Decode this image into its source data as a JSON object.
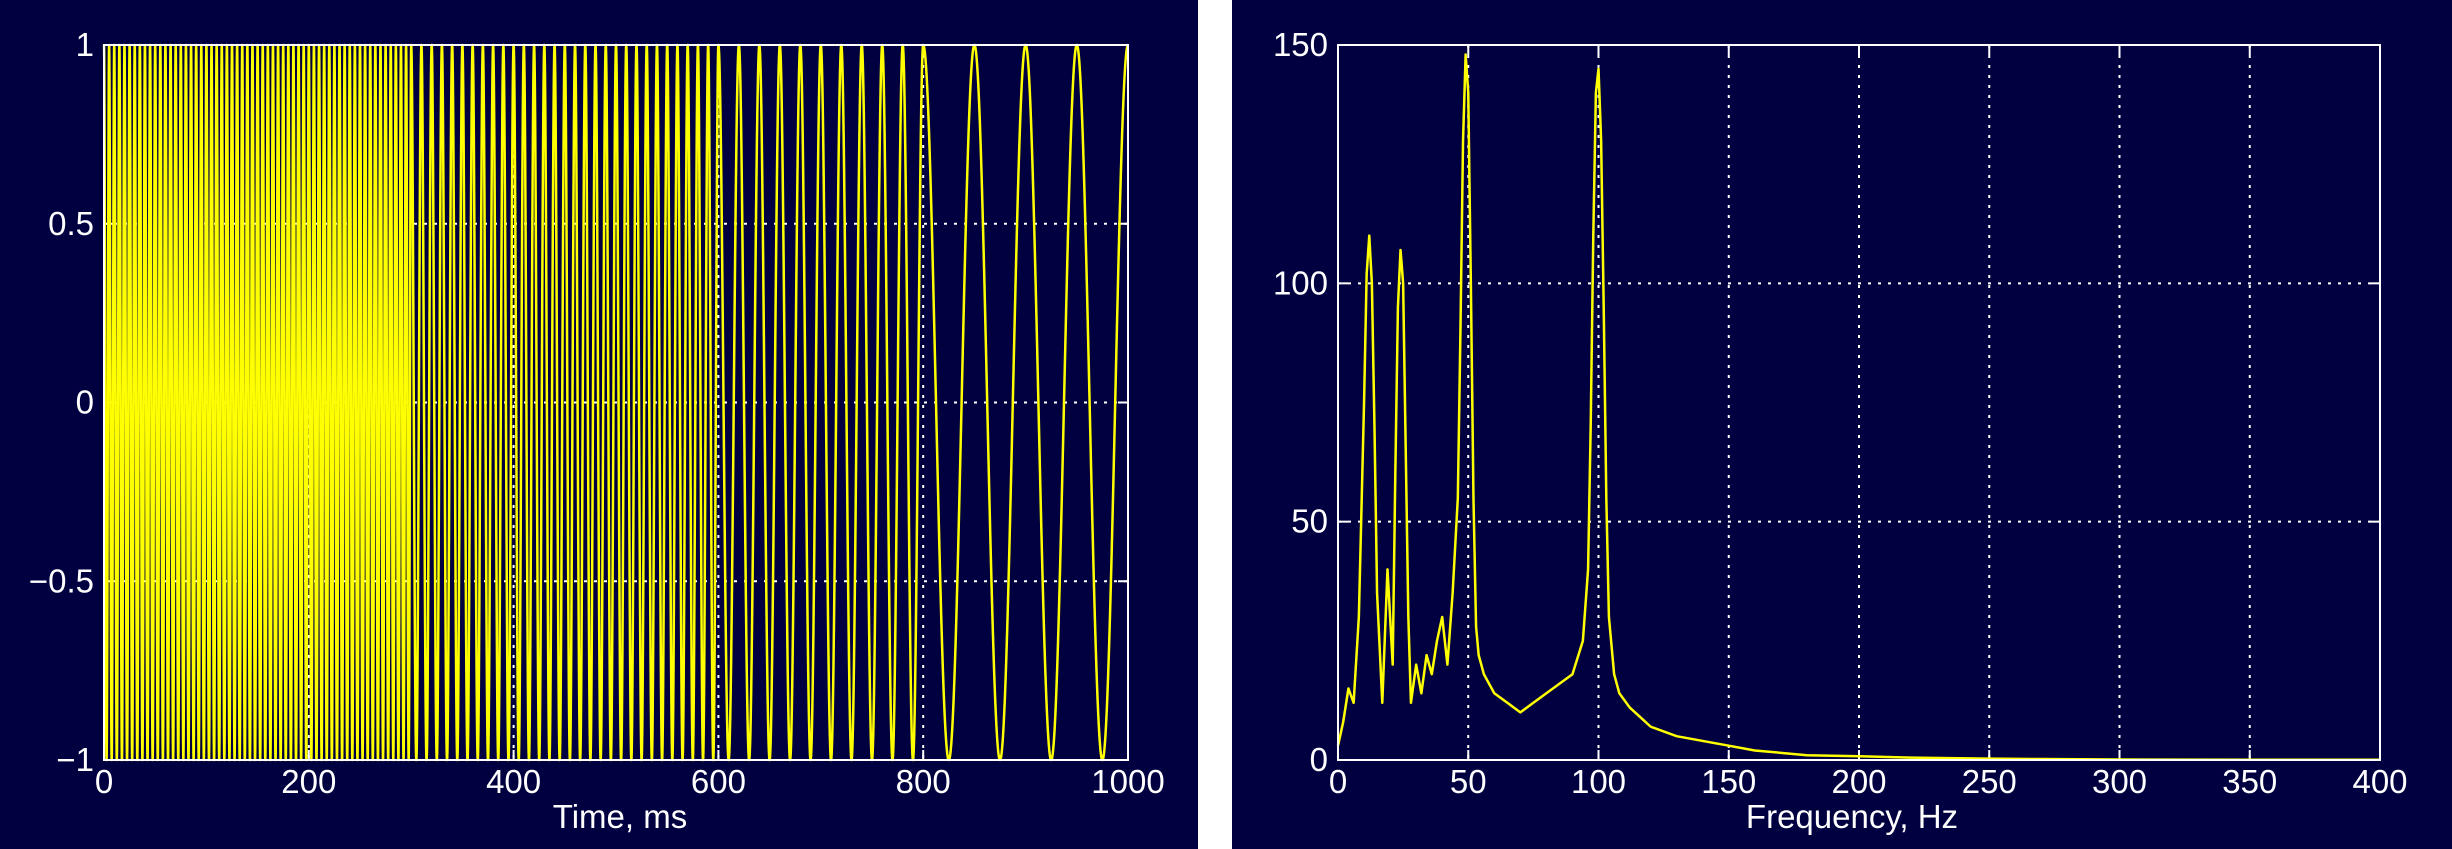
{
  "colors": {
    "background": "#000040",
    "trace": "#ffff00",
    "axes": "#ffffff"
  },
  "chart_data": [
    {
      "type": "line",
      "title": "",
      "xlabel": "Time, ms",
      "ylabel": "",
      "xlim": [
        0,
        1000
      ],
      "ylim": [
        -1,
        1
      ],
      "xticks": [
        0,
        200,
        400,
        600,
        800,
        1000
      ],
      "yticks": [
        -1,
        -0.5,
        0,
        0.5,
        1
      ],
      "xtick_labels": [
        "0",
        "200",
        "400",
        "600",
        "800",
        "1000"
      ],
      "ytick_labels": [
        "−1",
        "−0.5",
        "0",
        "0.5",
        "1"
      ],
      "grid": true,
      "series": [
        {
          "values_description_free": true,
          "segments": [
            {
              "t_start": 0,
              "t_end": 300,
              "frequency_hz": 200
            },
            {
              "t_start": 300,
              "t_end": 600,
              "frequency_hz": 100
            },
            {
              "t_start": 600,
              "t_end": 800,
              "frequency_hz": 50
            },
            {
              "t_start": 800,
              "t_end": 1000,
              "frequency_hz": 20
            }
          ]
        }
      ]
    },
    {
      "type": "line",
      "title": "",
      "xlabel": "Frequency, Hz",
      "ylabel": "",
      "xlim": [
        0,
        400
      ],
      "ylim": [
        0,
        150
      ],
      "xticks": [
        0,
        50,
        100,
        150,
        200,
        250,
        300,
        350,
        400
      ],
      "yticks": [
        0,
        50,
        100,
        150
      ],
      "xtick_labels": [
        "0",
        "50",
        "100",
        "150",
        "200",
        "250",
        "300",
        "350",
        "400"
      ],
      "ytick_labels": [
        "0",
        "50",
        "100",
        "150"
      ],
      "grid": true,
      "series": [
        {
          "x": [
            0,
            2,
            4,
            6,
            8,
            10,
            11,
            12,
            13,
            14,
            15,
            17,
            19,
            21,
            22,
            23,
            24,
            25,
            26,
            27,
            28,
            30,
            32,
            34,
            36,
            38,
            40,
            42,
            44,
            46,
            47,
            48,
            49,
            50,
            51,
            52,
            53,
            54,
            56,
            58,
            60,
            65,
            70,
            75,
            80,
            85,
            90,
            94,
            96,
            97,
            98,
            99,
            100,
            101,
            102,
            103,
            104,
            106,
            108,
            112,
            116,
            120,
            130,
            140,
            150,
            160,
            170,
            180,
            200,
            220,
            250,
            270,
            300,
            350,
            400
          ],
          "y": [
            3,
            8,
            15,
            12,
            30,
            75,
            102,
            110,
            100,
            70,
            35,
            12,
            40,
            20,
            60,
            95,
            107,
            100,
            65,
            30,
            12,
            20,
            14,
            22,
            18,
            25,
            30,
            20,
            35,
            55,
            90,
            130,
            148,
            140,
            100,
            55,
            28,
            22,
            18,
            16,
            14,
            12,
            10,
            12,
            14,
            16,
            18,
            25,
            40,
            70,
            110,
            140,
            145,
            130,
            95,
            55,
            30,
            18,
            14,
            11,
            9,
            7,
            5,
            4,
            3,
            2,
            1.5,
            1,
            0.8,
            0.5,
            0.3,
            0.2,
            0.1,
            0.05,
            0.05
          ]
        }
      ]
    }
  ]
}
